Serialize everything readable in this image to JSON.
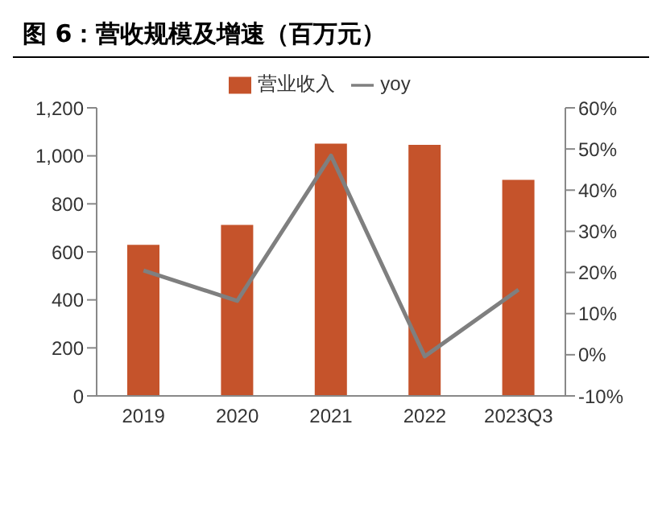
{
  "chart_data": {
    "type": "bar",
    "title": "图 6：营收规模及增速（百万元）",
    "categories": [
      "2019",
      "2020",
      "2021",
      "2022",
      "2023Q3"
    ],
    "series": [
      {
        "name": "营业收入",
        "color": "#c5532b",
        "values": [
          629,
          712,
          1051,
          1046,
          900
        ]
      },
      {
        "name": "yoy",
        "type": "line",
        "axis": "y2",
        "color": "#7f7f7f",
        "values": [
          20.5,
          13.1,
          48.4,
          -0.4,
          15.8
        ]
      }
    ],
    "ylim": [
      0,
      1200
    ],
    "yticks": [
      0,
      {
        "value": 200,
        "label": "200"
      },
      {
        "value": 400,
        "label": "400"
      },
      {
        "value": 600,
        "label": "600"
      },
      {
        "value": 800,
        "label": "800"
      },
      {
        "value": 1000,
        "label": "1,000"
      },
      {
        "value": 1200,
        "label": "1,200"
      }
    ],
    "y2lim": [
      -10,
      60
    ],
    "y2ticks": [
      {
        "value": -10,
        "label": "-10%"
      },
      {
        "value": 0,
        "label": "0%"
      },
      {
        "value": 10,
        "label": "10%"
      },
      {
        "value": 20,
        "label": "20%"
      },
      {
        "value": 30,
        "label": "30%"
      },
      {
        "value": 40,
        "label": "40%"
      },
      {
        "value": 50,
        "label": "50%"
      },
      {
        "value": 60,
        "label": "60%"
      }
    ],
    "grid": false,
    "legend": "top",
    "marker": "none"
  }
}
